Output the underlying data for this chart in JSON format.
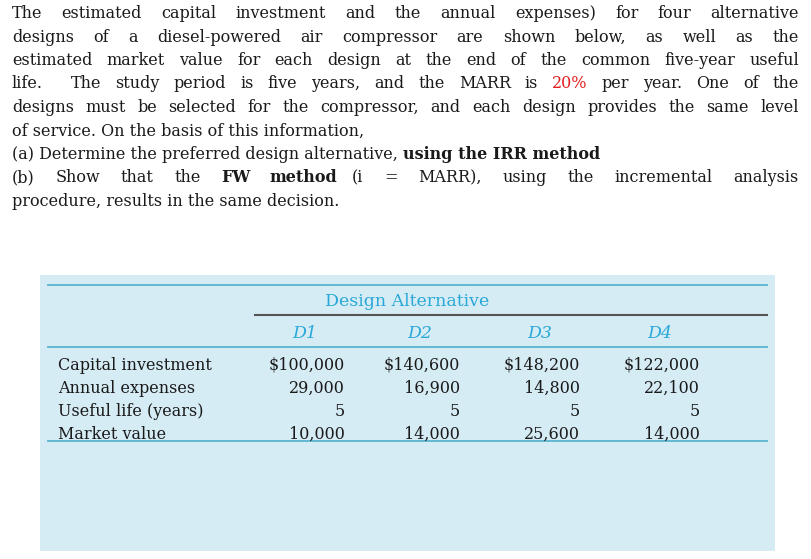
{
  "para_lines": [
    "The estimated capital investment and the annual expenses) for four alternative",
    "designs of a diesel-powered air compressor are shown below, as well as the",
    "estimated market value for each design at the end of the common five-year useful"
  ],
  "line4_pre": "life.  The study period is five years, and the MARR is ",
  "line4_red": "20%",
  "line4_post": " per year. One of the",
  "line5": "designs must be selected for the compressor, and each design provides the same level",
  "line6": "of service. On the basis of this information,",
  "line_a_pre": "(a) Determine the preferred design alternative, ",
  "line_a_bold": "using the IRR method",
  "line_b_pre": "(b) Show that the ",
  "line_b_bold1": "FW method",
  "line_b_mid1": " (",
  "line_b_italic": "i",
  "line_b_mid2": " = MARR), using the incremental analysis",
  "line_b2": "procedure, results in the same decision.",
  "table_bg_color": "#d6ecf5",
  "table_header_text": "Design Alternative",
  "table_header_color": "#29a8d8",
  "col_headers": [
    "D1",
    "D2",
    "D3",
    "D4"
  ],
  "row_labels": [
    "Capital investment",
    "Annual expenses",
    "Useful life (years)",
    "Market value"
  ],
  "table_data": [
    [
      "$100,000",
      "$140,600",
      "$148,200",
      "$122,000"
    ],
    [
      "29,000",
      "16,900",
      "14,800",
      "22,100"
    ],
    [
      "5",
      "5",
      "5",
      "5"
    ],
    [
      "10,000",
      "14,000",
      "25,600",
      "14,000"
    ]
  ],
  "text_color": "#1a1a1a",
  "marr_color": "#e02020",
  "line_color_blue": "#5ab4d0",
  "line_color_dark": "#555555",
  "bg_color": "#ffffff",
  "font_size": 11.5,
  "table_font_size": 11.5
}
